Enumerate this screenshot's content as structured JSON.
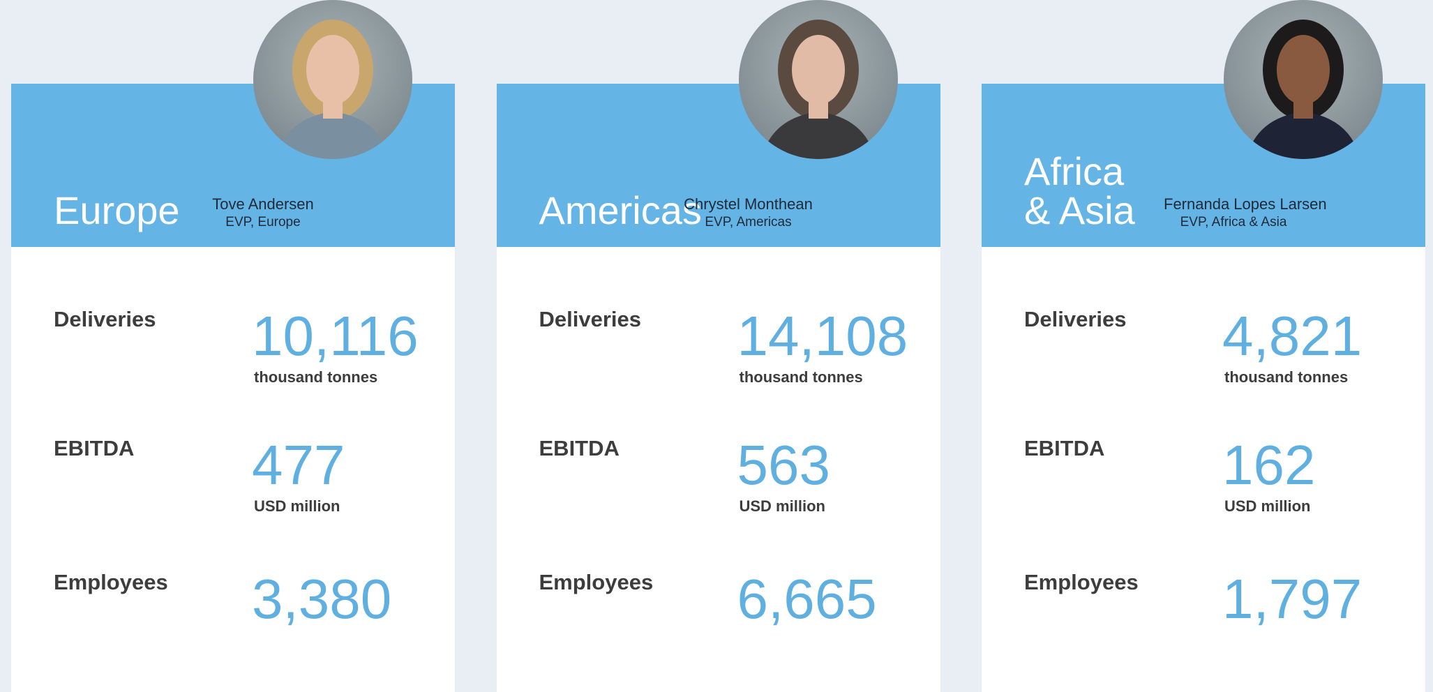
{
  "regions": [
    {
      "region": "Europe",
      "name": "Tove Andersen",
      "title": "EVP, Europe",
      "metrics": [
        {
          "label": "Deliveries",
          "value": "10,116",
          "unit": "thousand tonnes"
        },
        {
          "label": "EBITDA",
          "value": "477",
          "unit": "USD million"
        },
        {
          "label": "Employees",
          "value": "3,380"
        }
      ]
    },
    {
      "region": "Americas",
      "name": "Chrystel Monthean",
      "title": "EVP, Americas",
      "metrics": [
        {
          "label": "Deliveries",
          "value": "14,108",
          "unit": "thousand tonnes"
        },
        {
          "label": "EBITDA",
          "value": "563",
          "unit": "USD million"
        },
        {
          "label": "Employees",
          "value": "6,665"
        }
      ]
    },
    {
      "region": "Africa\n& Asia",
      "name": "Fernanda Lopes Larsen",
      "title": "EVP, Africa & Asia",
      "metrics": [
        {
          "label": "Deliveries",
          "value": "4,821",
          "unit": "thousand tonnes"
        },
        {
          "label": "EBITDA",
          "value": "162",
          "unit": "USD million"
        },
        {
          "label": "Employees",
          "value": "1,797"
        }
      ]
    }
  ]
}
